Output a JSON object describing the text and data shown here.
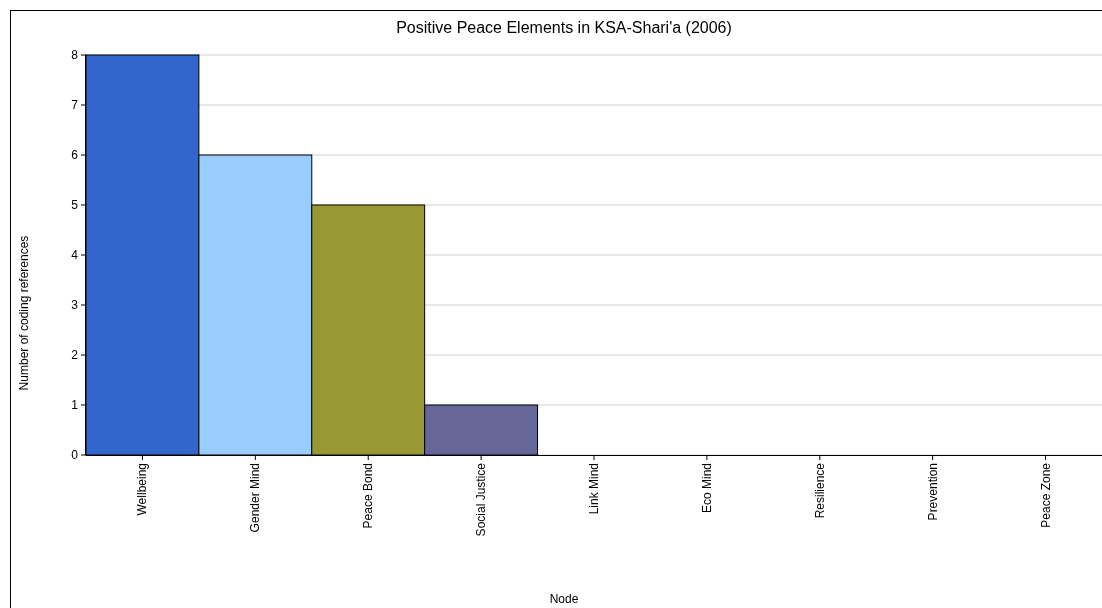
{
  "chart_data": {
    "type": "bar",
    "title": "Positive Peace Elements in KSA-Shari'a (2006)",
    "xlabel": "Node",
    "ylabel": "Number of coding references",
    "categories": [
      "Wellbeing",
      "Gender Mind",
      "Peace Bond",
      "Social Justice",
      "Link Mind",
      "Eco Mind",
      "Resilience",
      "Prevention",
      "Peace Zone"
    ],
    "values": [
      8,
      6,
      5,
      1,
      0,
      0,
      0,
      0,
      0
    ],
    "colors": [
      "#3366cc",
      "#99ccff",
      "#999933",
      "#666699",
      "#3366cc",
      "#99ccff",
      "#999933",
      "#666699",
      "#3366cc"
    ],
    "ylim": [
      0,
      8
    ],
    "yticks": [
      0,
      1,
      2,
      3,
      4,
      5,
      6,
      7,
      8
    ],
    "grid": "y"
  }
}
